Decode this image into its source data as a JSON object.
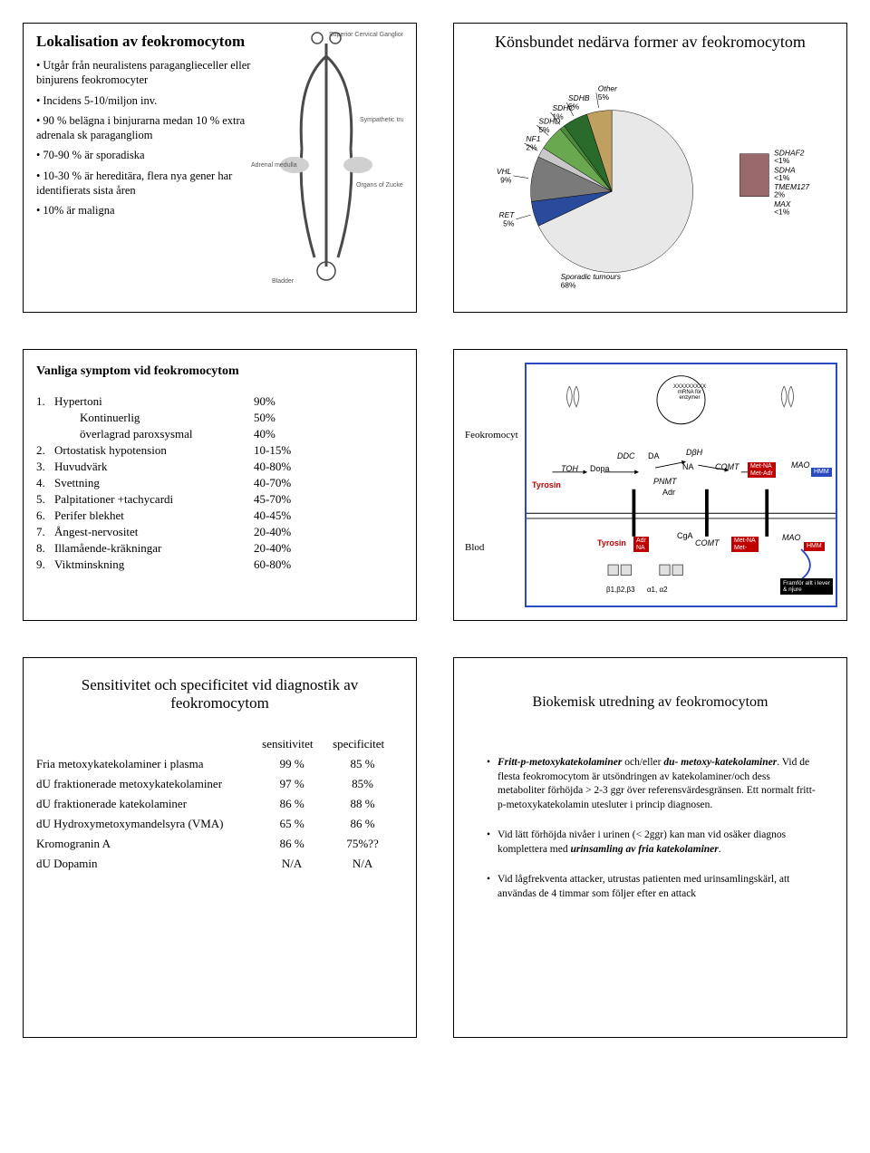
{
  "panel1": {
    "title": "Lokalisation av feokromocytom",
    "bullets": [
      "Utgår från neuralistens paraganglieceller eller binjurens feokromocyter",
      "Incidens 5-10/miljon inv.",
      "90 % belägna i binjurarna medan 10 % extra adrenala sk paragangliom",
      "70-90 % är sporadiska",
      "10-30 % är hereditära, flera nya gener har identifierats sista åren",
      "10% är maligna"
    ],
    "anat_labels": {
      "scg": "Superior Cervical Ganglion",
      "st": "Sympathetic trunk",
      "am": "Adrenal medulla",
      "oz": "Organs of Zuckerkandl",
      "bl": "Bladder"
    },
    "anat_color": "#4a4a4a"
  },
  "panel2": {
    "title": "Könsbundet nedärva former av feokromocytom",
    "sporadic_label": "Sporadic tumours",
    "sporadic_pct": "68%",
    "slices": [
      {
        "label": "RET",
        "pct": "5%",
        "start": 244.8,
        "size": 18.0,
        "color": "#2a4a9c"
      },
      {
        "label": "VHL",
        "pct": "9%",
        "start": 262.8,
        "size": 32.4,
        "color": "#7a7a7a"
      },
      {
        "label": "NF1",
        "pct": "2%",
        "start": 295.2,
        "size": 7.2,
        "color": "#c8c8c8"
      },
      {
        "label": "SDHD",
        "pct": "5%",
        "start": 302.4,
        "size": 18.0,
        "color": "#6aa84f"
      },
      {
        "label": "SDHC",
        "pct": "1%",
        "start": 320.4,
        "size": 3.6,
        "color": "#4a8a3a"
      },
      {
        "label": "SDHB",
        "pct": "5%",
        "start": 324.0,
        "size": 18.0,
        "color": "#2a6a2a"
      },
      {
        "label": "Other",
        "pct": "5%",
        "start": 342.0,
        "size": 18.0,
        "color": "#bfa060"
      }
    ],
    "sporadic_slice": {
      "start": 0,
      "size": 244.8,
      "color": "#e8e8e8"
    },
    "side_labels": [
      {
        "label": "SDHAF2",
        "pct": "<1%"
      },
      {
        "label": "SDHA",
        "pct": "<1%"
      },
      {
        "label": "TMEM127",
        "pct": "2%"
      },
      {
        "label": "MAX",
        "pct": "<1%"
      }
    ],
    "swatch_color": "#9a6a6a"
  },
  "panel3": {
    "title": "Vanliga symptom vid feokromocytom",
    "rows": [
      {
        "n": "1.",
        "name": "Hypertoni",
        "pct": "90%",
        "sub": [
          {
            "name": "Kontinuerlig",
            "pct": "50%"
          },
          {
            "name": "överlagrad paroxsysmal",
            "pct": "40%"
          }
        ]
      },
      {
        "n": "2.",
        "name": "Ortostatisk hypotension",
        "pct": "10-15%"
      },
      {
        "n": "3.",
        "name": "Huvudvärk",
        "pct": "40-80%"
      },
      {
        "n": "4.",
        "name": "Svettning",
        "pct": "40-70%"
      },
      {
        "n": "5.",
        "name": "Palpitationer +tachycardi",
        "pct": "45-70%"
      },
      {
        "n": "6.",
        "name": "Perifer blekhet",
        "pct": "40-45%"
      },
      {
        "n": "7.",
        "name": "Ångest-nervositet",
        "pct": "20-40%"
      },
      {
        "n": "8.",
        "name": "Illamående-kräkningar",
        "pct": "20-40%"
      },
      {
        "n": "9.",
        "name": "Viktminskning",
        "pct": "60-80%"
      }
    ]
  },
  "panel4": {
    "left_labels": {
      "top": "Feokromocyt",
      "bottom": "Blod"
    },
    "dna_text1": "XXXXXXXXX",
    "dna_text2": "mRNA för\nenzymer",
    "path_top": [
      "Tyrosin",
      "TOH",
      "Dopa",
      "DDC",
      "DA",
      "DβH",
      "NA",
      "PNMT",
      "Adr",
      "COMT",
      "Met-NA",
      "Met-Adr",
      "MAO",
      "HMM"
    ],
    "blod_red": "Tyrosin",
    "blod_chain": [
      "Adr",
      "NA",
      "CgA",
      "COMT",
      "Met-NA",
      "Met-",
      "MAO",
      "HMM"
    ],
    "receptors": "β1,β2,β3      α1, α2",
    "liver_note": "Framför allt i lever\n& njure",
    "colors": {
      "red": "#c00000",
      "blue_border": "#2a4ac0",
      "black": "#000000"
    }
  },
  "panel5": {
    "title": "Sensitivitet och specificitet vid diagnostik av feokromocytom",
    "col1": "sensitivitet",
    "col2": "specificitet",
    "rows": [
      {
        "name": "Fria metoxykatekolaminer i plasma",
        "s": "99 %",
        "p": "85 %"
      },
      {
        "name": "dU fraktionerade metoxykatekolaminer",
        "s": "97 %",
        "p": "85%"
      },
      {
        "name": "dU fraktionerade katekolaminer",
        "s": "86 %",
        "p": "88 %"
      },
      {
        "name": "dU Hydroxymetoxymandelsyra (VMA)",
        "s": "65 %",
        "p": "86 %"
      },
      {
        "name": "Kromogranin A",
        "s": "86 %",
        "p": "75%??"
      },
      {
        "name": "dU Dopamin",
        "s": "N/A",
        "p": "N/A"
      }
    ]
  },
  "panel6": {
    "title": "Biokemisk utredning av feokromocytom",
    "b1_lead1": "Fritt-p-metoxykatekolaminer",
    "b1_mid": " och/eller ",
    "b1_lead2": "du- metoxy-katekolaminer",
    "b1_rest": ". Vid de flesta feokromocytom är utsöndringen av katekolaminer/och dess metaboliter förhöjda > 2-3 ggr över referensvärdesgränsen. Ett normalt fritt-p-metoxykatekolamin utesluter i princip diagnosen.",
    "b2_pre": "Vid lätt förhöjda nivåer i urinen (< 2ggr) kan man vid osäker diagnos komplettera med ",
    "b2_em": "urinsamling av fria katekolaminer",
    "b2_post": ".",
    "b3": "Vid lågfrekventa attacker, utrustas patienten med urinsamlingskärl, att användas de 4 timmar som följer efter en attack"
  }
}
